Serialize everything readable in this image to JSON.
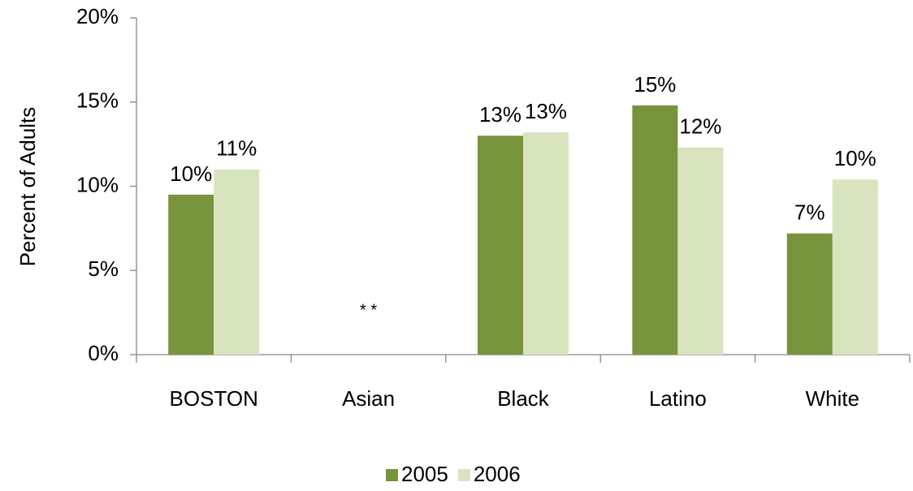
{
  "chart_data": {
    "type": "bar",
    "y_label": "Percent of Adults",
    "categories": [
      "BOSTON",
      "Asian",
      "Black",
      "Latino",
      "White"
    ],
    "series": [
      {
        "name": "2005",
        "color": "#77933c",
        "values": [
          9.5,
          null,
          13,
          14.8,
          7.2
        ],
        "value_labels": [
          "10%",
          null,
          "13%",
          "15%",
          "7%"
        ]
      },
      {
        "name": "2006",
        "color": "#d7e4bd",
        "values": [
          11,
          null,
          13.2,
          12.3,
          10.4
        ],
        "value_labels": [
          "11%",
          null,
          "13%",
          "12%",
          "10%"
        ]
      }
    ],
    "annotation": "* *",
    "ylim": [
      0,
      20
    ],
    "yticks": [
      {
        "value": 0,
        "label": "0%"
      },
      {
        "value": 5,
        "label": "5%"
      },
      {
        "value": 10,
        "label": "10%"
      },
      {
        "value": 15,
        "label": "15%"
      },
      {
        "value": 20,
        "label": "20%"
      }
    ],
    "grid": false,
    "legend": "bottom"
  }
}
